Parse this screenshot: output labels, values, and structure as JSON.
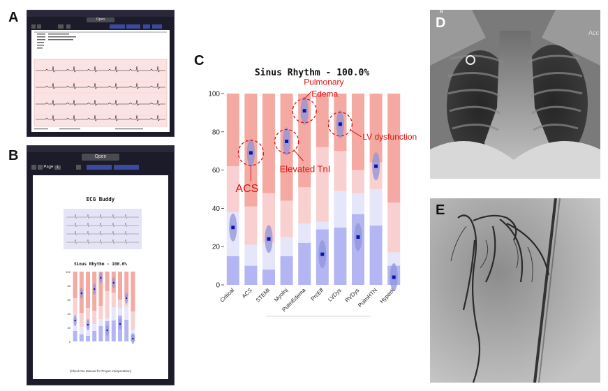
{
  "panels": {
    "a": "A",
    "b": "B",
    "c": "C",
    "d": "D",
    "e": "E"
  },
  "panel_b": {
    "open_label": "Open",
    "page_label": "Page",
    "page_num": "1",
    "app_title": "ECG Buddy",
    "mini_chart_title": "Sinus Rhythm - 100.0%",
    "footnote": "(Check the Manual for Proper Interpretation)"
  },
  "panel_a": {
    "open_label": "Open"
  },
  "panel_d": {
    "marker": "R",
    "corner": "Acc"
  },
  "chart_data": {
    "type": "bar",
    "title": "Sinus Rhythm - 100.0%",
    "xlabel": "",
    "ylabel": "",
    "ylim": [
      0,
      100
    ],
    "yticks": [
      0,
      20,
      40,
      60,
      80,
      100
    ],
    "categories": [
      "Critical",
      "ACS",
      "STEMI",
      "MyoInj",
      "PulmEdema",
      "PrcEff",
      "LVDys",
      "RVDys",
      "PulmHTN",
      "HyperK"
    ],
    "band_colors": {
      "low": "#b3b6f2",
      "intermediate": "#e6e6fa",
      "high": "#f9d0d0",
      "very_high": "#f4aaa2"
    },
    "low_top": [
      15,
      10,
      8,
      15,
      22,
      29,
      30,
      37,
      31,
      10
    ],
    "intermediate_top": [
      38,
      21,
      22,
      25,
      32,
      33,
      49,
      48,
      50,
      17
    ],
    "high_top": [
      62,
      41,
      48,
      44,
      51,
      72,
      70,
      60,
      64,
      43
    ],
    "values": [
      30,
      69,
      24,
      75,
      91,
      16,
      84,
      25,
      62,
      4
    ],
    "annotations": [
      {
        "text": "ACS",
        "target": "ACS"
      },
      {
        "text": "Elevated TnI",
        "target": "MyoInj"
      },
      {
        "text": "Pulmonary",
        "target": "PulmEdema"
      },
      {
        "text": "Edema",
        "target": "PulmEdema"
      },
      {
        "text": "LV dysfunction",
        "target": "LVDys"
      }
    ]
  },
  "colors": {
    "accent": "#e01010",
    "marker": "#0a14b0",
    "dark_ui": "#1c1b2a"
  }
}
